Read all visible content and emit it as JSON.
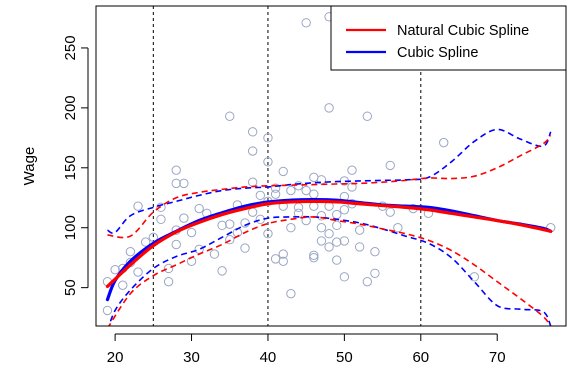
{
  "chart_data": {
    "type": "scatter",
    "title": "",
    "xlabel": "",
    "ylabel": "Wage",
    "xlim": [
      17.5,
      79
    ],
    "ylim": [
      18,
      285
    ],
    "xticks": [
      20,
      30,
      40,
      50,
      60,
      70
    ],
    "yticks": [
      50,
      100,
      150,
      200,
      250
    ],
    "knots": [
      25,
      40,
      60
    ],
    "legend": {
      "position": "top-right"
    },
    "colors": {
      "natural": "#ff0000",
      "cubic": "#0000ff",
      "points": "#9aa6c4",
      "axis": "#000000"
    },
    "points": [
      [
        19,
        31
      ],
      [
        19,
        55
      ],
      [
        20,
        65
      ],
      [
        21,
        52
      ],
      [
        21,
        66
      ],
      [
        22,
        71
      ],
      [
        22,
        80
      ],
      [
        23,
        63
      ],
      [
        23,
        118
      ],
      [
        24,
        88
      ],
      [
        25,
        92
      ],
      [
        26,
        107
      ],
      [
        26,
        117
      ],
      [
        27,
        55
      ],
      [
        27,
        66
      ],
      [
        28,
        86
      ],
      [
        28,
        98
      ],
      [
        28,
        137
      ],
      [
        28,
        148
      ],
      [
        29,
        137
      ],
      [
        29,
        108
      ],
      [
        30,
        72
      ],
      [
        30,
        96
      ],
      [
        31,
        82
      ],
      [
        31,
        116
      ],
      [
        32,
        112
      ],
      [
        33,
        78
      ],
      [
        34,
        64
      ],
      [
        34,
        102
      ],
      [
        35,
        193
      ],
      [
        35,
        103
      ],
      [
        35,
        90
      ],
      [
        36,
        96
      ],
      [
        36,
        119
      ],
      [
        37,
        83
      ],
      [
        37,
        104
      ],
      [
        38,
        113
      ],
      [
        38,
        180
      ],
      [
        38,
        164
      ],
      [
        38,
        138
      ],
      [
        39,
        127
      ],
      [
        39,
        107
      ],
      [
        40,
        122
      ],
      [
        40,
        95
      ],
      [
        40,
        175
      ],
      [
        40,
        155
      ],
      [
        41,
        74
      ],
      [
        41,
        133
      ],
      [
        41,
        128
      ],
      [
        42,
        147
      ],
      [
        42,
        118
      ],
      [
        42,
        78
      ],
      [
        42,
        72
      ],
      [
        43,
        131
      ],
      [
        43,
        45
      ],
      [
        43,
        100
      ],
      [
        44,
        117
      ],
      [
        44,
        112
      ],
      [
        44,
        135
      ],
      [
        45,
        131
      ],
      [
        45,
        271
      ],
      [
        45,
        106
      ],
      [
        46,
        142
      ],
      [
        46,
        128
      ],
      [
        46,
        118
      ],
      [
        46,
        77
      ],
      [
        46,
        75
      ],
      [
        47,
        100
      ],
      [
        47,
        89
      ],
      [
        47,
        110
      ],
      [
        47,
        140
      ],
      [
        48,
        84
      ],
      [
        48,
        200
      ],
      [
        48,
        276
      ],
      [
        48,
        118
      ],
      [
        48,
        95
      ],
      [
        49,
        111
      ],
      [
        49,
        102
      ],
      [
        49,
        73
      ],
      [
        49,
        88
      ],
      [
        50,
        139
      ],
      [
        50,
        126
      ],
      [
        50,
        115
      ],
      [
        50,
        89
      ],
      [
        50,
        59
      ],
      [
        51,
        280
      ],
      [
        51,
        148
      ],
      [
        51,
        134
      ],
      [
        51,
        120
      ],
      [
        52,
        98
      ],
      [
        52,
        84
      ],
      [
        53,
        193
      ],
      [
        53,
        55
      ],
      [
        54,
        80
      ],
      [
        54,
        62
      ],
      [
        55,
        118
      ],
      [
        56,
        113
      ],
      [
        56,
        152
      ],
      [
        57,
        100
      ],
      [
        59,
        116
      ],
      [
        61,
        112
      ],
      [
        63,
        171
      ],
      [
        67,
        59
      ],
      [
        77,
        100
      ]
    ],
    "series": [
      {
        "name": "Natural Cubic Spline",
        "x": [
          19,
          22,
          25,
          28,
          31,
          34,
          37,
          40,
          43,
          46,
          49,
          52,
          55,
          58,
          61,
          64,
          67,
          70,
          73,
          76,
          77
        ],
        "fit": [
          51,
          69,
          85,
          96.5,
          104.5,
          111,
          116,
          120,
          121.5,
          122,
          121.5,
          120,
          118.5,
          117,
          115,
          112,
          109,
          106,
          102.5,
          98.5,
          97
        ],
        "upper": [
          94,
          93,
          113,
          125,
          129.5,
          132,
          134,
          135,
          135.5,
          136,
          136.5,
          137,
          138,
          139.5,
          141.5,
          141,
          143,
          150,
          160,
          170,
          177
        ],
        "lower": [
          16,
          45,
          60,
          69,
          78,
          86,
          96,
          103.5,
          107,
          109,
          106,
          103,
          99,
          95,
          89.5,
          81,
          69,
          55,
          41,
          26,
          18
        ]
      },
      {
        "name": "Cubic Spline",
        "x": [
          19,
          20,
          22,
          25,
          28,
          31,
          34,
          37,
          40,
          43,
          46,
          49,
          52,
          55,
          58,
          61,
          64,
          67,
          70,
          73,
          76,
          77
        ],
        "fit": [
          40,
          56,
          72,
          87,
          97,
          106,
          112.5,
          118,
          121.5,
          123,
          123.5,
          123,
          121,
          119,
          118,
          117,
          114,
          110,
          106,
          103,
          99.5,
          97
        ],
        "upper": [
          98,
          96,
          110,
          117,
          122,
          127,
          131,
          133,
          134,
          136,
          137.5,
          138.5,
          139,
          139.5,
          140,
          142,
          155,
          172,
          182,
          174,
          168,
          180
        ],
        "lower": [
          14,
          31,
          48,
          66,
          76,
          82,
          92,
          102,
          108,
          109,
          109,
          107,
          104,
          99,
          93,
          87,
          75,
          55,
          35,
          32,
          30,
          18
        ]
      }
    ]
  }
}
